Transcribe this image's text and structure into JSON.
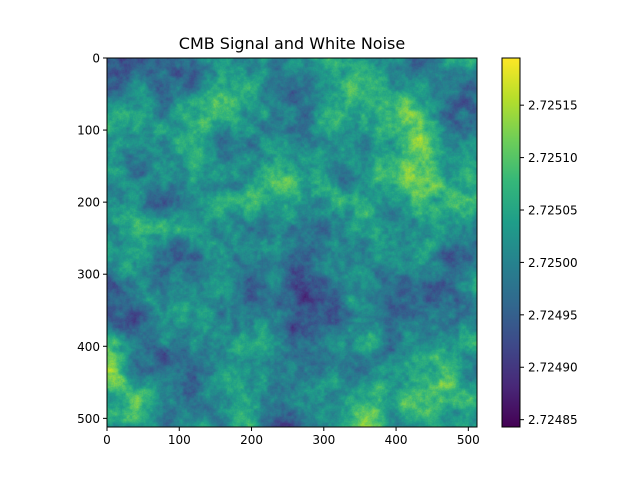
{
  "chart_data": {
    "type": "heatmap",
    "title": "CMB Signal and White Noise",
    "xlabel": "",
    "ylabel": "",
    "grid": false,
    "colormap": "viridis",
    "image_size": [
      512,
      512
    ],
    "xlim": [
      0,
      512
    ],
    "ylim": [
      512,
      0
    ],
    "x_ticks": [
      0,
      100,
      200,
      300,
      400,
      500
    ],
    "y_ticks": [
      0,
      100,
      200,
      300,
      400,
      500
    ],
    "colorbar": {
      "min": 2.724843,
      "max": 2.725195,
      "ticks": [
        2.72485,
        2.7249,
        2.72495,
        2.725,
        2.72505,
        2.7251,
        2.72515
      ],
      "tick_labels": [
        "2.72485",
        "2.72490",
        "2.72495",
        "2.72500",
        "2.72505",
        "2.72510",
        "2.72515"
      ]
    },
    "colormap_stops": [
      "#440154",
      "#482878",
      "#3e4989",
      "#31688e",
      "#26828e",
      "#1f9e89",
      "#35b779",
      "#6ece58",
      "#b5de2b",
      "#fde725"
    ]
  }
}
